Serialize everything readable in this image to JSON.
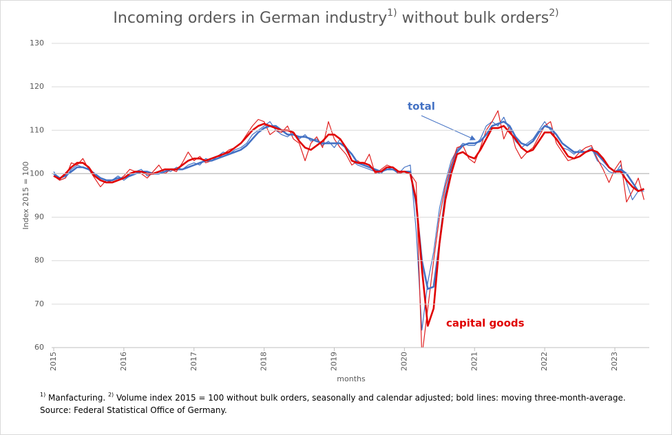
{
  "chart_data": {
    "type": "line",
    "title": [
      "Incoming orders in German industry",
      "1)",
      " without bulk orders",
      "2)"
    ],
    "y_label": "Index 2015 = 100",
    "x_label": "months",
    "footnote": [
      [
        "1)",
        " Manfacturing. ",
        "2)",
        " Volume index 2015 = 100  without bulk orders, seasonally and calendar adjusted; bold lines: moving three-month-average."
      ],
      [
        "Source: Federal Statistical Office of Germany."
      ]
    ],
    "categories": [
      "2015",
      null,
      null,
      null,
      null,
      null,
      null,
      null,
      null,
      null,
      null,
      null,
      "2016",
      null,
      null,
      null,
      null,
      null,
      null,
      null,
      null,
      null,
      null,
      null,
      "2017",
      null,
      null,
      null,
      null,
      null,
      null,
      null,
      null,
      null,
      null,
      null,
      "2018",
      null,
      null,
      null,
      null,
      null,
      null,
      null,
      null,
      null,
      null,
      null,
      "2019",
      null,
      null,
      null,
      null,
      null,
      null,
      null,
      null,
      null,
      null,
      null,
      "2020",
      null,
      null,
      null,
      null,
      null,
      null,
      null,
      null,
      null,
      null,
      null,
      "2021",
      null,
      null,
      null,
      null,
      null,
      null,
      null,
      null,
      null,
      null,
      null,
      "2022",
      null,
      null,
      null,
      null,
      null,
      null,
      null,
      null,
      null,
      null,
      null,
      "2023",
      null,
      null,
      null,
      null,
      null
    ],
    "ylim": [
      60,
      130
    ],
    "yticks": [
      60,
      70,
      80,
      90,
      100,
      110,
      120,
      130
    ],
    "grid": true,
    "reference_line": 100,
    "series": [
      {
        "color": "#4472c4",
        "width": 1.2,
        "values": [
          100.5,
          98.5,
          99,
          101,
          102,
          101.5,
          101,
          99.5,
          98.5,
          98,
          98.5,
          99.5,
          98.5,
          99.5,
          100.5,
          101,
          99.5,
          100,
          100.5,
          101,
          100.5,
          101.5,
          101,
          102,
          102.5,
          102,
          103.5,
          103,
          104,
          105,
          104.5,
          105.5,
          106,
          107,
          109,
          110,
          111,
          112,
          110,
          109,
          108.5,
          109.5,
          108,
          109,
          107.5,
          108,
          106.5,
          107.5,
          106,
          108,
          105.5,
          103,
          102,
          101.5,
          101,
          100.5,
          100,
          101.5,
          101,
          100,
          101.5,
          102,
          87,
          64,
          75,
          82,
          92,
          98,
          103,
          105.5,
          107,
          106.5,
          106.5,
          108,
          111,
          112,
          111,
          113,
          110,
          107.5,
          106,
          107,
          108,
          110,
          112,
          110,
          108,
          106,
          105.5,
          104.5,
          105.5,
          105,
          106,
          103,
          102,
          100.5,
          100,
          102,
          98,
          94,
          96,
          96
        ]
      },
      {
        "color": "#e02020",
        "width": 1.2,
        "values": [
          99.5,
          98.5,
          99,
          102.5,
          102,
          103.5,
          101,
          99,
          97,
          98.5,
          98,
          98.5,
          99.5,
          101,
          100.5,
          100,
          99,
          100.5,
          102,
          100,
          101,
          100.5,
          102.5,
          105,
          103,
          104,
          102.5,
          103,
          103.5,
          104.5,
          105.5,
          106,
          107,
          109,
          111,
          112.5,
          112,
          109,
          110,
          109.5,
          111,
          108,
          107,
          103,
          107,
          108.5,
          106,
          112,
          108,
          106,
          104.5,
          102,
          103,
          102,
          104.5,
          100,
          101,
          102,
          101.5,
          100,
          100.5,
          100,
          98,
          58,
          69,
          80,
          90,
          97,
          102,
          106,
          106.5,
          103.5,
          102.5,
          106,
          110,
          112,
          114.5,
          108,
          111,
          106,
          103.5,
          105,
          106,
          108.5,
          111,
          112,
          107,
          105,
          103,
          103.5,
          105,
          106,
          106.5,
          103.5,
          101,
          98,
          101,
          103,
          93.5,
          96,
          99,
          94
        ]
      },
      {
        "name": "total",
        "color": "#4472c4",
        "width": 2.6,
        "values": [
          100,
          99,
          99.5,
          100.5,
          101.5,
          101.5,
          101,
          100,
          99,
          98.5,
          98.5,
          99,
          99,
          99.5,
          100,
          100.5,
          100.5,
          100,
          100,
          100.5,
          101,
          101,
          101,
          101.5,
          102,
          102.5,
          103,
          103,
          103.5,
          104,
          104.5,
          105,
          105.5,
          106.5,
          108,
          109.5,
          110.5,
          111,
          111,
          110,
          109,
          109,
          108.5,
          108.5,
          108,
          107.5,
          107,
          107,
          107,
          107,
          106,
          104.5,
          102.5,
          102,
          101.5,
          101,
          100.5,
          101,
          101,
          100.5,
          100.5,
          100.5,
          93,
          80,
          73.5,
          74,
          84,
          95,
          101,
          105,
          106.5,
          107,
          107,
          107.5,
          109,
          111,
          111.5,
          112,
          111,
          108.5,
          107,
          106.5,
          107.5,
          109.5,
          111,
          110.5,
          109,
          107,
          106,
          105,
          105,
          105,
          105.5,
          104.5,
          103,
          101.5,
          100.5,
          101,
          100,
          98,
          96,
          96.5
        ]
      },
      {
        "name": "capital goods",
        "color": "#e00000",
        "width": 2.6,
        "values": [
          99.5,
          98.8,
          100,
          101.5,
          102.5,
          102.5,
          101.5,
          99.5,
          98.5,
          98,
          98,
          98.5,
          99,
          100,
          100.5,
          100.5,
          100,
          100,
          100.5,
          101,
          101,
          101,
          102,
          103,
          103.5,
          103.5,
          103,
          103.5,
          104,
          104.5,
          105,
          106,
          107,
          108.5,
          110,
          111,
          111.5,
          111,
          110.5,
          110,
          110,
          109.5,
          107.5,
          106,
          105.5,
          106.5,
          107.5,
          109,
          109,
          108,
          106,
          103,
          102.5,
          102.5,
          102,
          100.5,
          100.5,
          101.5,
          101.5,
          100.5,
          100.5,
          100,
          94,
          78,
          65,
          69,
          84,
          94,
          100,
          104.5,
          105,
          104,
          103.5,
          105.5,
          108,
          110.5,
          110.5,
          111,
          109.5,
          108,
          106,
          105,
          105.5,
          107.5,
          109.5,
          109.5,
          108,
          106,
          104,
          103.5,
          104,
          105,
          105.5,
          105,
          103.5,
          101.5,
          100.5,
          100.5,
          98.5,
          97,
          96,
          96.5
        ]
      }
    ]
  }
}
